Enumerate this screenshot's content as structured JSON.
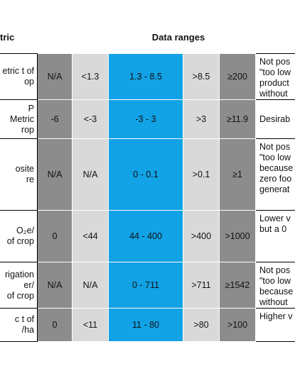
{
  "header": {
    "metric": "tric",
    "ranges": "Data ranges"
  },
  "rows": [
    {
      "metric": [
        "etric t of",
        "op"
      ],
      "c1": "N/A",
      "c2": "<1.3",
      "c3": "1.3 - 8.5",
      "c4": ">8.5",
      "c5": "≥200",
      "note": [
        "Not pos",
        "\"too low",
        "product",
        "without"
      ]
    },
    {
      "metric": [
        "P",
        "Metric",
        "rop"
      ],
      "c1": "-6",
      "c2": "<-3",
      "c3": "-3 - 3",
      "c4": ">3",
      "c5": "≥11.9",
      "note": [
        "Desirab"
      ]
    },
    {
      "metric": [
        "osite",
        "re"
      ],
      "c1": "N/A",
      "c2": "N/A",
      "c3": "0 - 0.1",
      "c4": ">0.1",
      "c5": "≥1",
      "note": [
        "Not pos",
        "\"too low",
        "because",
        "zero foo",
        "generat"
      ]
    },
    {
      "metric": [
        "O₂e/",
        "of crop"
      ],
      "c1": "0",
      "c2": "<44",
      "c3": "44 - 400",
      "c4": ">400",
      "c5": ">1000",
      "note": [
        "Lower v",
        "but a 0"
      ]
    },
    {
      "metric": [
        "rigation",
        "er/",
        "of crop"
      ],
      "c1": "N/A",
      "c2": "N/A",
      "c3": "0 - 711",
      "c4": ">711",
      "c5": "≥1542",
      "note": [
        "Not pos",
        "\"too low",
        "because",
        "without"
      ]
    },
    {
      "metric": [
        "c t of",
        "/ha"
      ],
      "c1": "0",
      "c2": "<11",
      "c3": "11 - 80",
      "c4": ">80",
      "c5": ">100",
      "note": [
        "Higher v"
      ]
    }
  ]
}
